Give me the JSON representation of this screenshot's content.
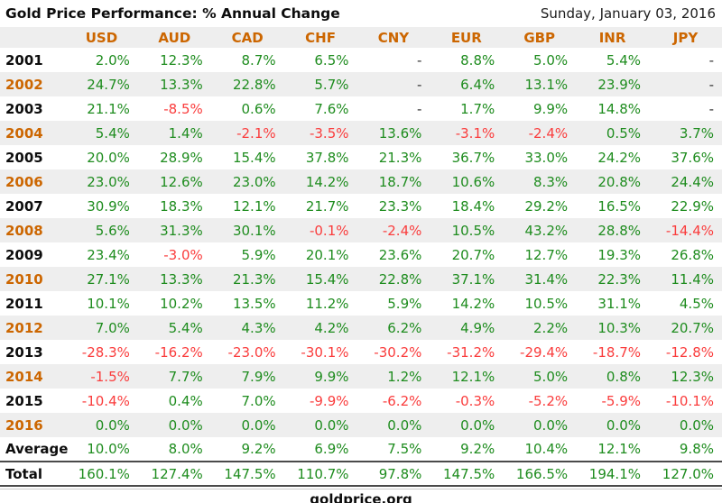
{
  "header": {
    "title": "Gold Price Performance: % Annual Change",
    "date": "Sunday, January 03, 2016"
  },
  "chart_data": {
    "type": "table",
    "title": "Gold Price Performance: % Annual Change",
    "columns": [
      "USD",
      "AUD",
      "CAD",
      "CHF",
      "CNY",
      "EUR",
      "GBP",
      "INR",
      "JPY"
    ],
    "rows": [
      {
        "label": "2001",
        "values": [
          "2.0%",
          "12.3%",
          "8.7%",
          "6.5%",
          "-",
          "8.8%",
          "5.0%",
          "5.4%",
          "-"
        ]
      },
      {
        "label": "2002",
        "values": [
          "24.7%",
          "13.3%",
          "22.8%",
          "5.7%",
          "-",
          "6.4%",
          "13.1%",
          "23.9%",
          "-"
        ]
      },
      {
        "label": "2003",
        "values": [
          "21.1%",
          "-8.5%",
          "0.6%",
          "7.6%",
          "-",
          "1.7%",
          "9.9%",
          "14.8%",
          "-"
        ]
      },
      {
        "label": "2004",
        "values": [
          "5.4%",
          "1.4%",
          "-2.1%",
          "-3.5%",
          "13.6%",
          "-3.1%",
          "-2.4%",
          "0.5%",
          "3.7%"
        ]
      },
      {
        "label": "2005",
        "values": [
          "20.0%",
          "28.9%",
          "15.4%",
          "37.8%",
          "21.3%",
          "36.7%",
          "33.0%",
          "24.2%",
          "37.6%"
        ]
      },
      {
        "label": "2006",
        "values": [
          "23.0%",
          "12.6%",
          "23.0%",
          "14.2%",
          "18.7%",
          "10.6%",
          "8.3%",
          "20.8%",
          "24.4%"
        ]
      },
      {
        "label": "2007",
        "values": [
          "30.9%",
          "18.3%",
          "12.1%",
          "21.7%",
          "23.3%",
          "18.4%",
          "29.2%",
          "16.5%",
          "22.9%"
        ]
      },
      {
        "label": "2008",
        "values": [
          "5.6%",
          "31.3%",
          "30.1%",
          "-0.1%",
          "-2.4%",
          "10.5%",
          "43.2%",
          "28.8%",
          "-14.4%"
        ]
      },
      {
        "label": "2009",
        "values": [
          "23.4%",
          "-3.0%",
          "5.9%",
          "20.1%",
          "23.6%",
          "20.7%",
          "12.7%",
          "19.3%",
          "26.8%"
        ]
      },
      {
        "label": "2010",
        "values": [
          "27.1%",
          "13.3%",
          "21.3%",
          "15.4%",
          "22.8%",
          "37.1%",
          "31.4%",
          "22.3%",
          "11.4%"
        ]
      },
      {
        "label": "2011",
        "values": [
          "10.1%",
          "10.2%",
          "13.5%",
          "11.2%",
          "5.9%",
          "14.2%",
          "10.5%",
          "31.1%",
          "4.5%"
        ]
      },
      {
        "label": "2012",
        "values": [
          "7.0%",
          "5.4%",
          "4.3%",
          "4.2%",
          "6.2%",
          "4.9%",
          "2.2%",
          "10.3%",
          "20.7%"
        ]
      },
      {
        "label": "2013",
        "values": [
          "-28.3%",
          "-16.2%",
          "-23.0%",
          "-30.1%",
          "-30.2%",
          "-31.2%",
          "-29.4%",
          "-18.7%",
          "-12.8%"
        ]
      },
      {
        "label": "2014",
        "values": [
          "-1.5%",
          "7.7%",
          "7.9%",
          "9.9%",
          "1.2%",
          "12.1%",
          "5.0%",
          "0.8%",
          "12.3%"
        ]
      },
      {
        "label": "2015",
        "values": [
          "-10.4%",
          "0.4%",
          "7.0%",
          "-9.9%",
          "-6.2%",
          "-0.3%",
          "-5.2%",
          "-5.9%",
          "-10.1%"
        ]
      },
      {
        "label": "2016",
        "values": [
          "0.0%",
          "0.0%",
          "0.0%",
          "0.0%",
          "0.0%",
          "0.0%",
          "0.0%",
          "0.0%",
          "0.0%"
        ]
      },
      {
        "label": "Average",
        "values": [
          "10.0%",
          "8.0%",
          "9.2%",
          "6.9%",
          "7.5%",
          "9.2%",
          "10.4%",
          "12.1%",
          "9.8%"
        ]
      },
      {
        "label": "Total",
        "values": [
          "160.1%",
          "127.4%",
          "147.5%",
          "110.7%",
          "97.8%",
          "147.5%",
          "166.5%",
          "194.1%",
          "127.0%"
        ]
      }
    ]
  },
  "footer": {
    "site": "goldprice.org"
  },
  "colors": {
    "positive": "#1e8c1e",
    "negative": "#fa3c3c",
    "accent_orange": "#cc6600",
    "stripe": "#eeeeee",
    "dash": "#333333"
  }
}
